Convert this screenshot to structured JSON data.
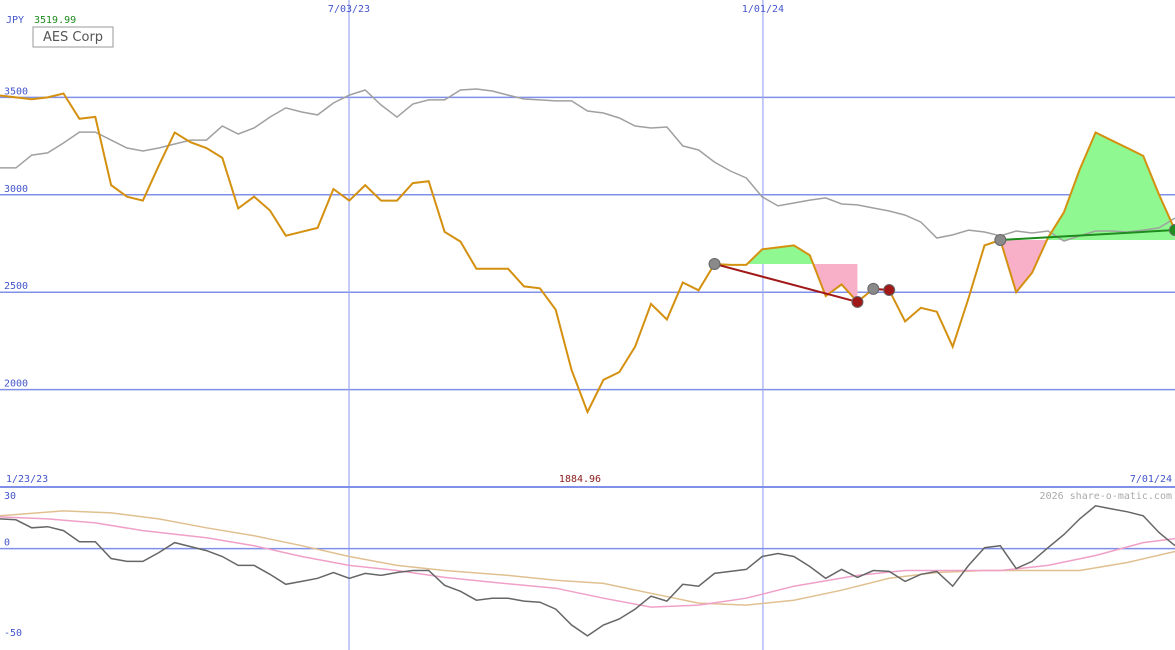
{
  "chart_data": [
    {
      "type": "line",
      "currency": "JPY",
      "legend_label": "AES Corp",
      "max_label": 3519.99,
      "min_label": 1884.96,
      "start_label": "1/23/23",
      "end_label": "7/01/24",
      "watermark": "2026 share-o-matic.com",
      "x": [
        0,
        1,
        2,
        3,
        4,
        5,
        6,
        7,
        8,
        9,
        10,
        11,
        12,
        13,
        14,
        15,
        16,
        17,
        18,
        19,
        20,
        21,
        22,
        23,
        24,
        25,
        26,
        27,
        28,
        29,
        30,
        31,
        32,
        33,
        34,
        35,
        36,
        37,
        38,
        39,
        40,
        41,
        42,
        43,
        44,
        45,
        46,
        47,
        48,
        49,
        50,
        51,
        52,
        53,
        54,
        55,
        56,
        57,
        58,
        59,
        60,
        61,
        62,
        63,
        64,
        65,
        66,
        67,
        68,
        69,
        70,
        71,
        72,
        73,
        74
      ],
      "xlim": [
        0,
        74
      ],
      "xticks": [
        {
          "value": 21.98,
          "label": "7/03/23"
        },
        {
          "value": 48.05,
          "label": "1/01/24"
        }
      ],
      "ylim": [
        1500,
        4000
      ],
      "yticks": [
        2000,
        2500,
        3000,
        3500
      ],
      "grid": true,
      "series": [
        {
          "color": "#a0a0a0",
          "values": [
            3138,
            3138,
            3204,
            3215,
            3266,
            3322,
            3322,
            3281,
            3240,
            3225,
            3240,
            3261,
            3281,
            3281,
            3353,
            3312,
            3343,
            3399,
            3446,
            3425,
            3410,
            3471,
            3512,
            3538,
            3461,
            3399,
            3466,
            3487,
            3487,
            3538,
            3543,
            3533,
            3512,
            3492,
            3487,
            3482,
            3482,
            3430,
            3420,
            3394,
            3353,
            3343,
            3348,
            3251,
            3230,
            3168,
            3122,
            3086,
            2989,
            2943,
            2958,
            2973,
            2984,
            2953,
            2948,
            2932,
            2917,
            2896,
            2860,
            2778,
            2794,
            2819,
            2809,
            2789,
            2814,
            2804,
            2814,
            2763,
            2789,
            2814,
            2814,
            2809,
            2819,
            2830,
            2881
          ]
        },
        {
          "color": "#d4900f",
          "values": [
            3510,
            3500,
            3490,
            3500,
            3520,
            3390,
            3400,
            3050,
            2990,
            2970,
            3150,
            3320,
            3270,
            3240,
            3190,
            2930,
            2990,
            2920,
            2790,
            2810,
            2830,
            3030,
            2970,
            3050,
            2970,
            2970,
            3060,
            3070,
            2810,
            2760,
            2620,
            2620,
            2620,
            2530,
            2520,
            2410,
            2100,
            1885,
            2050,
            2090,
            2220,
            2440,
            2360,
            2550,
            2510,
            2645,
            2640,
            2640,
            2720,
            2730,
            2740,
            2690,
            2480,
            2540,
            2450,
            2517,
            2511,
            2350,
            2420,
            2400,
            2220,
            2470,
            2740,
            2768,
            2500,
            2600,
            2780,
            2910,
            3130,
            3320,
            3280,
            3240,
            3200,
            3000,
            2819
          ]
        }
      ],
      "trades": [
        {
          "entry": [
            45,
            2645
          ],
          "exit": [
            54,
            2450
          ],
          "color": "#a01818"
        },
        {
          "entry": [
            55,
            2517
          ],
          "exit": [
            56,
            2511
          ],
          "color": "#a01818"
        },
        {
          "entry": [
            63,
            2768
          ],
          "exit": [
            74,
            2819
          ],
          "color": "#1e8c1e"
        }
      ]
    },
    {
      "type": "line",
      "x": [
        0,
        1,
        2,
        3,
        4,
        5,
        6,
        7,
        8,
        9,
        10,
        11,
        12,
        13,
        14,
        15,
        16,
        17,
        18,
        19,
        20,
        21,
        22,
        23,
        24,
        25,
        26,
        27,
        28,
        29,
        30,
        31,
        32,
        33,
        34,
        35,
        36,
        37,
        38,
        39,
        40,
        41,
        42,
        43,
        44,
        45,
        46,
        47,
        48,
        49,
        50,
        51,
        52,
        53,
        54,
        55,
        56,
        57,
        58,
        59,
        60,
        61,
        62,
        63,
        64,
        65,
        66,
        67,
        68,
        69,
        70,
        71,
        72,
        73,
        74
      ],
      "xlim": [
        0,
        74
      ],
      "ylim": [
        -56,
        34
      ],
      "yticks": [
        30,
        0,
        -50
      ],
      "series": [
        {
          "color": "#e0c090",
          "x": [
            0,
            4,
            7,
            10,
            13,
            16,
            19,
            22,
            25,
            28,
            32,
            35,
            38,
            41,
            44,
            47,
            50,
            53,
            56,
            59,
            62,
            65,
            68,
            71,
            74
          ],
          "values": [
            18.1,
            20.8,
            19.7,
            16.4,
            11.5,
            7.1,
            1.6,
            -4.4,
            -9.3,
            -12.1,
            -14.8,
            -17.5,
            -19.2,
            -24.7,
            -30.1,
            -31.2,
            -28.5,
            -23.0,
            -16.4,
            -13.2,
            -12.1,
            -12.1,
            -12.1,
            -7.7,
            -1.6
          ]
        },
        {
          "color": "#f0a0c8",
          "x": [
            0,
            3,
            6,
            9,
            13,
            16,
            19,
            22,
            25,
            28,
            31,
            35,
            38,
            41,
            44,
            47,
            50,
            54,
            57,
            60,
            63,
            66,
            69,
            72,
            74
          ],
          "values": [
            17.5,
            16.4,
            14.2,
            9.9,
            6.0,
            1.6,
            -4.4,
            -9.3,
            -12.1,
            -15.9,
            -18.6,
            -21.9,
            -27.4,
            -32.3,
            -31.2,
            -27.4,
            -20.8,
            -14.8,
            -12.1,
            -12.1,
            -12.1,
            -9.3,
            -3.8,
            3.3,
            5.5
          ]
        },
        {
          "color": "#666666",
          "values": [
            16.4,
            15.9,
            11.5,
            12.1,
            9.9,
            3.8,
            3.8,
            -5.5,
            -7.1,
            -7.1,
            -2.2,
            3.3,
            1.1,
            -1.1,
            -4.4,
            -9.3,
            -9.3,
            -14.2,
            -19.7,
            -18.1,
            -16.4,
            -13.2,
            -16.4,
            -13.7,
            -14.8,
            -13.2,
            -12.1,
            -12.1,
            -20.3,
            -23.6,
            -28.5,
            -27.4,
            -27.4,
            -29.0,
            -29.6,
            -33.4,
            -42.2,
            -48.2,
            -42.2,
            -38.9,
            -33.4,
            -26.3,
            -29.0,
            -19.7,
            -20.8,
            -13.7,
            -12.6,
            -11.5,
            -4.4,
            -2.7,
            -4.4,
            -9.9,
            -16.4,
            -11.5,
            -15.9,
            -12.1,
            -12.6,
            -18.1,
            -14.2,
            -12.6,
            -20.8,
            -9.3,
            0.5,
            1.6,
            -11.0,
            -7.1,
            0.5,
            7.7,
            16.4,
            23.6,
            21.9,
            20.3,
            18.1,
            8.8,
            1.6
          ]
        }
      ]
    }
  ]
}
